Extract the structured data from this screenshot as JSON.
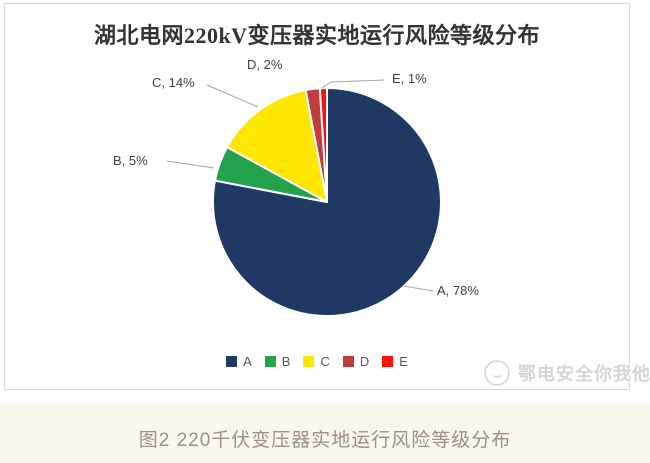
{
  "chart_data": {
    "type": "pie",
    "title": "湖北电网220kV变压器实地运行风险等级分布",
    "slices": [
      {
        "name": "A",
        "value": 78,
        "color": "#1F3864"
      },
      {
        "name": "B",
        "value": 5,
        "color": "#22A24C"
      },
      {
        "name": "C",
        "value": 14,
        "color": "#FFE600"
      },
      {
        "name": "D",
        "value": 2,
        "color": "#C43B3B"
      },
      {
        "name": "E",
        "value": 1,
        "color": "#FF0F0F"
      }
    ],
    "label_format": "{name}, {value}%",
    "start_angle_deg": 0,
    "direction": "clockwise",
    "legend_position": "bottom",
    "slice_border_color": "#FFFFFF",
    "leader_line_color": "#A6A6A6"
  },
  "watermark": {
    "text": "鄂电安全你我他",
    "logo": "circle-mascot-icon"
  },
  "caption": "图2  220千伏变压器实地运行风险等级分布"
}
